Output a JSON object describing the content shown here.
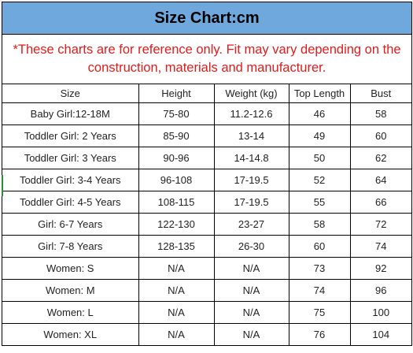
{
  "title": "Size Chart:cm",
  "notice": "*These charts are for reference only. Fit may vary depending on the construction, materials and manufacturer.",
  "columns": [
    "Size",
    "Height",
    "Weight (kg)",
    "Top Length",
    "Bust"
  ],
  "rows": [
    [
      "Baby Girl:12-18M",
      "75-80",
      "11.2-12.6",
      "46",
      "58"
    ],
    [
      "Toddler Girl: 2 Years",
      "85-90",
      "13-14",
      "49",
      "60"
    ],
    [
      "Toddler Girl: 3 Years",
      "90-96",
      "14-14.8",
      "50",
      "62"
    ],
    [
      "Toddler Girl: 3-4 Years",
      "96-108",
      "17-19.5",
      "52",
      "64"
    ],
    [
      "Toddler Girl: 4-5 Years",
      "108-115",
      "17-19.5",
      "55",
      "66"
    ],
    [
      "Girl: 6-7 Years",
      "122-130",
      "23-27",
      "58",
      "72"
    ],
    [
      "Girl: 7-8 Years",
      "128-135",
      "26-30",
      "60",
      "74"
    ],
    [
      "Women: S",
      "N/A",
      "N/A",
      "73",
      "92"
    ],
    [
      "Women: M",
      "N/A",
      "N/A",
      "74",
      "96"
    ],
    [
      "Women: L",
      "N/A",
      "N/A",
      "75",
      "100"
    ],
    [
      "Women: XL",
      "N/A",
      "N/A",
      "76",
      "104"
    ]
  ],
  "colors": {
    "header_bg": "#6fa8dc",
    "notice_text": "#e31b1b",
    "selected_row_marker": "#2e8b3a"
  }
}
